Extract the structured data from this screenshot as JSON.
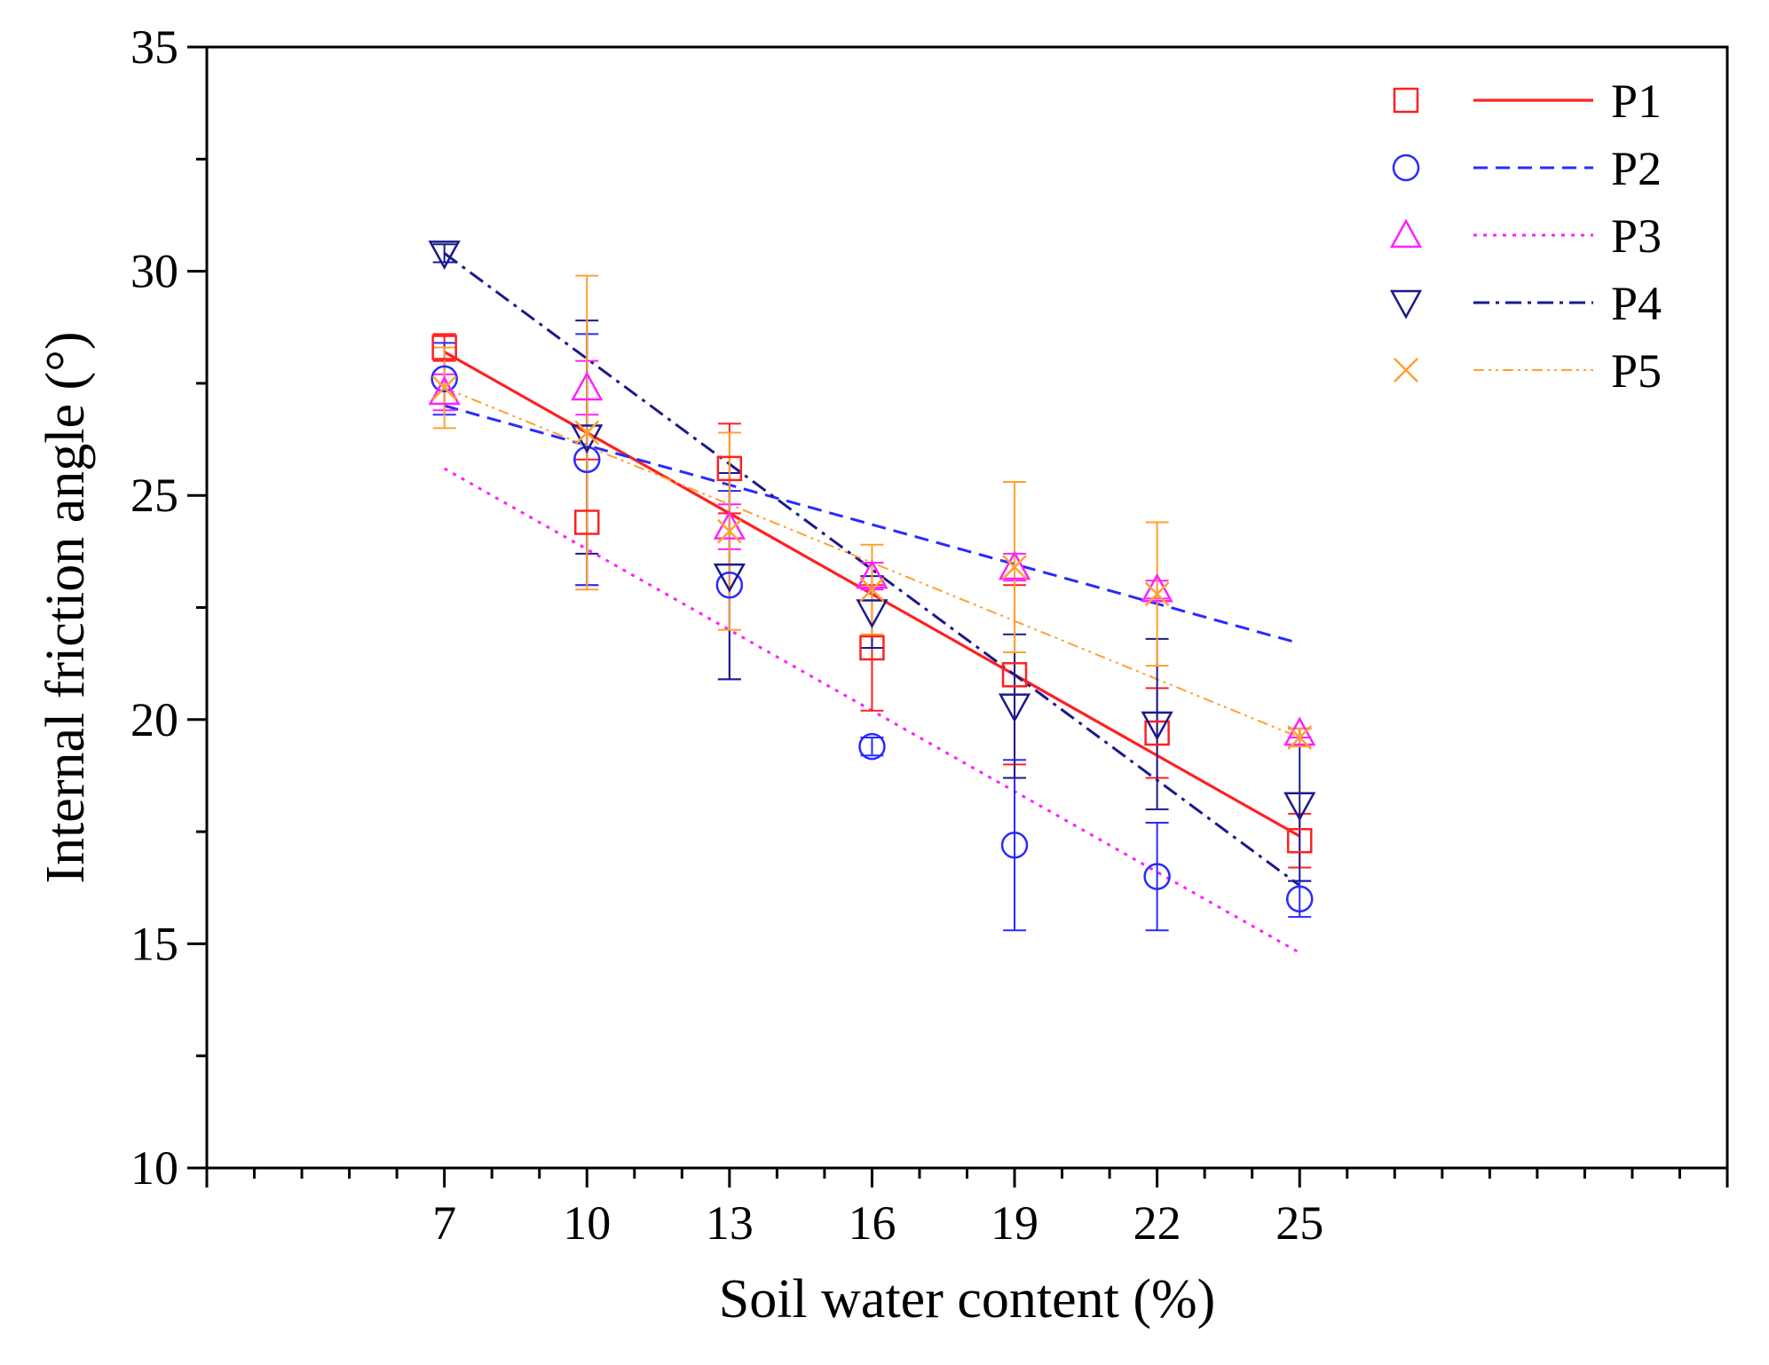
{
  "chart_data": {
    "type": "scatter",
    "title": "",
    "xlabel": "Soil water content (%)",
    "ylabel": "Internal friction angle (°)",
    "xlim": [
      2,
      34
    ],
    "ylim": [
      10,
      35
    ],
    "xticks": [
      7,
      10,
      13,
      16,
      19,
      22,
      25
    ],
    "xtick_labels": [
      "7",
      "10",
      "13",
      "16",
      "19",
      "22",
      "25"
    ],
    "yticks": [
      10,
      15,
      20,
      25,
      30,
      35
    ],
    "ytick_labels": [
      "10",
      "15",
      "20",
      "25",
      "30",
      "35"
    ],
    "legend_position": "top-right",
    "x": [
      7,
      10,
      13,
      16,
      19,
      22,
      25
    ],
    "series": [
      {
        "name": "P1",
        "color": "#ff2020",
        "marker": "square",
        "line_style": "solid",
        "values": [
          28.3,
          24.4,
          25.6,
          21.6,
          21.0,
          19.7,
          17.3
        ],
        "error": [
          0.3,
          1.4,
          1.0,
          1.4,
          2.0,
          1.0,
          0.6
        ],
        "fit": [
          28.2,
          17.4
        ]
      },
      {
        "name": "P2",
        "color": "#2a2aff",
        "marker": "circle",
        "line_style": "dashed",
        "values": [
          27.6,
          25.8,
          23.0,
          19.4,
          17.2,
          16.5,
          16.0
        ],
        "error": [
          0.8,
          2.8,
          2.1,
          0.2,
          1.9,
          1.2,
          0.4
        ],
        "fit": [
          27.0,
          21.7
        ]
      },
      {
        "name": "P3",
        "color": "#ff20ff",
        "marker": "triangle-up",
        "line_style": "dotted",
        "values": [
          27.3,
          27.4,
          24.3,
          23.2,
          23.4,
          22.9,
          19.7
        ],
        "error": [
          0.4,
          0.6,
          0.5,
          0.3,
          0.3,
          0.2,
          0.1
        ],
        "fit": [
          25.6,
          14.8
        ]
      },
      {
        "name": "P4",
        "color": "#1a1a8c",
        "marker": "triangle-down",
        "line_style": "dashdot",
        "values": [
          30.4,
          26.3,
          23.2,
          22.4,
          20.3,
          19.9,
          18.1
        ],
        "error": [
          0.2,
          2.6,
          2.3,
          0.8,
          1.6,
          1.9,
          1.7
        ],
        "fit": [
          30.4,
          16.3
        ]
      },
      {
        "name": "P5",
        "color": "#ffa030",
        "marker": "x",
        "line_style": "dash-dot-dot",
        "values": [
          27.4,
          26.4,
          24.2,
          22.9,
          23.4,
          22.8,
          19.6
        ],
        "error": [
          0.9,
          3.5,
          2.2,
          1.0,
          1.9,
          1.6,
          0.2
        ],
        "fit": [
          27.4,
          19.6
        ]
      }
    ]
  }
}
